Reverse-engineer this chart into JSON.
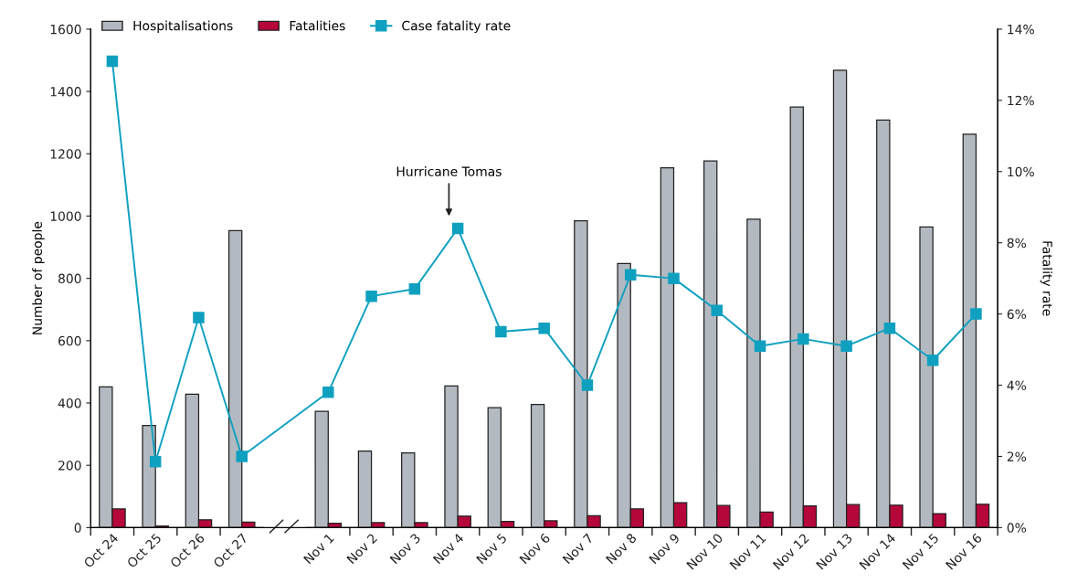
{
  "chart_data": {
    "type": "bar",
    "categories": [
      "Oct 24",
      "Oct 25",
      "Oct 26",
      "Oct 27",
      null,
      "Nov 1",
      "Nov 2",
      "Nov 3",
      "Nov 4",
      "Nov 5",
      "Nov 6",
      "Nov 7",
      "Nov 8",
      "Nov 9",
      "Nov 10",
      "Nov 11",
      "Nov 12",
      "Nov 13",
      "Nov 14",
      "Nov 15",
      "Nov 16"
    ],
    "series": [
      {
        "name": "Hospitalisations",
        "color": "#b3b9c0",
        "values": [
          452,
          328,
          428,
          953,
          null,
          373,
          246,
          240,
          455,
          385,
          395,
          985,
          848,
          1155,
          1177,
          990,
          1350,
          1468,
          1308,
          965,
          1263
        ]
      },
      {
        "name": "Fatalities",
        "color": "#b5073a",
        "values": [
          60,
          5,
          25,
          18,
          null,
          14,
          16,
          16,
          37,
          20,
          22,
          38,
          60,
          80,
          71,
          50,
          70,
          74,
          72,
          45,
          75
        ]
      },
      {
        "name": "Case fatality rate",
        "type": "line",
        "axis": "y2",
        "color": "#0fa0c0",
        "marker": "square",
        "values": [
          13.1,
          1.85,
          5.9,
          2.0,
          null,
          3.8,
          6.5,
          6.7,
          8.4,
          5.5,
          5.6,
          4.0,
          7.1,
          7.0,
          6.1,
          5.1,
          5.3,
          5.1,
          5.6,
          4.7,
          6.0
        ]
      }
    ],
    "ylabel": "Number of people",
    "y2label": "Fatality rate",
    "ylim": [
      0,
      1600
    ],
    "yticks": [
      0,
      200,
      400,
      600,
      800,
      1000,
      1200,
      1400,
      1600
    ],
    "y2lim": [
      0,
      14
    ],
    "y2ticks": [
      {
        "value": 0,
        "label": "0%"
      },
      {
        "value": 2,
        "label": "2%"
      },
      {
        "value": 4,
        "label": "4%"
      },
      {
        "value": 6,
        "label": "6%"
      },
      {
        "value": 8,
        "label": "8%"
      },
      {
        "value": 10,
        "label": "10%"
      },
      {
        "value": 12,
        "label": "12%"
      },
      {
        "value": 14,
        "label": "14%"
      }
    ],
    "annotations": [
      "Hurricane Tomas"
    ],
    "legend": "top left"
  }
}
